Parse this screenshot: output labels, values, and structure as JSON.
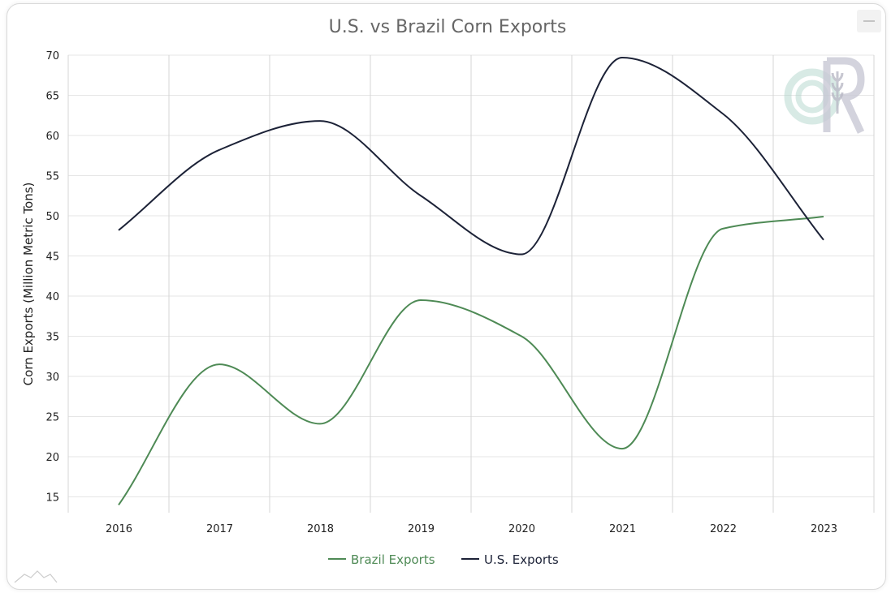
{
  "chart_data": {
    "type": "line",
    "title": "U.S. vs Brazil Corn Exports",
    "xlabel": "",
    "ylabel": "Corn Exports (Million Metric Tons)",
    "x": [
      "2016",
      "2017",
      "2018",
      "2019",
      "2020",
      "2021",
      "2022",
      "2023"
    ],
    "ylim": [
      13,
      70
    ],
    "yticks": [
      15,
      20,
      25,
      30,
      35,
      40,
      45,
      50,
      55,
      60,
      65,
      70
    ],
    "grid": true,
    "legend_position": "bottom",
    "series": [
      {
        "name": "Brazil Exports",
        "color": "#4e8a55",
        "values": [
          14.0,
          31.5,
          24.1,
          39.5,
          35.0,
          21.0,
          48.4,
          49.9
        ]
      },
      {
        "name": "U.S. Exports",
        "color": "#1c2237",
        "values": [
          48.2,
          58.2,
          61.8,
          52.5,
          45.2,
          69.7,
          62.7,
          47.0
        ]
      }
    ]
  },
  "logo_text": "CR",
  "menu_icon": "hamburger-menu-icon"
}
